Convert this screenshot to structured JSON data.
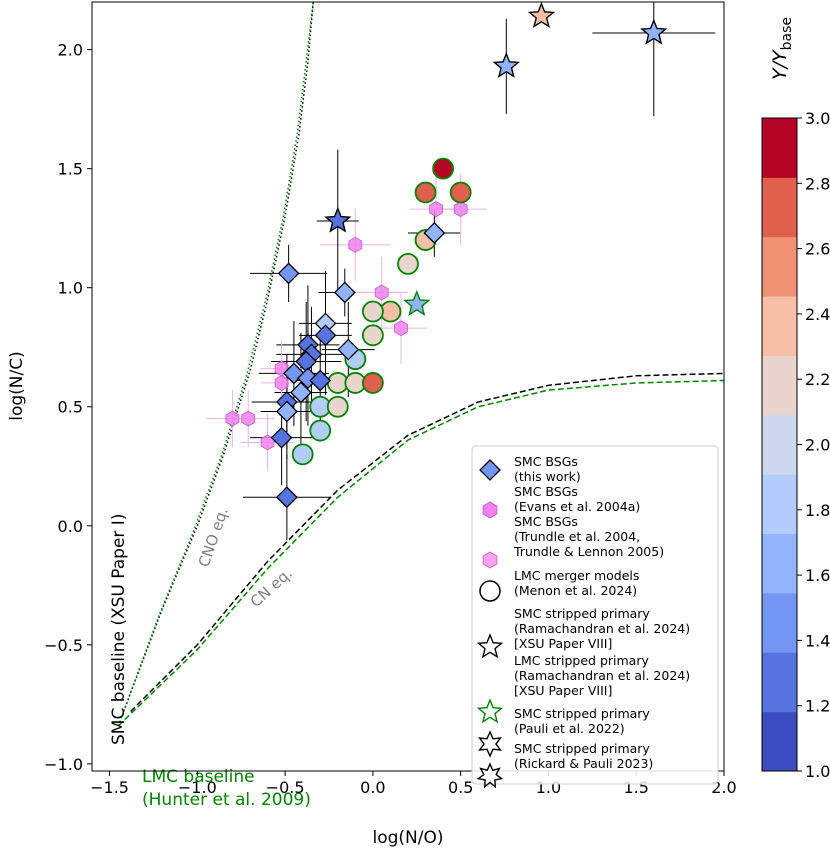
{
  "chart_data": {
    "type": "scatter",
    "xlabel": "log(N/O)",
    "ylabel": "log(N/C)",
    "xlim": [
      -1.6,
      2.0
    ],
    "ylim": [
      -1.03,
      2.2
    ],
    "xticks": [
      -1.5,
      -1.0,
      -0.5,
      0.0,
      0.5,
      1.0,
      1.5,
      2.0
    ],
    "yticks": [
      -1.0,
      -0.5,
      0.0,
      0.5,
      1.0,
      1.5,
      2.0
    ],
    "xtick_labels": [
      "−1.5",
      "−1.0",
      "−0.5",
      "0.0",
      "0.5",
      "1.0",
      "1.5",
      "2.0"
    ],
    "ytick_labels": [
      "−1.0",
      "−0.5",
      "0.0",
      "0.5",
      "1.0",
      "1.5",
      "2.0"
    ],
    "colorbar": {
      "label": "Y/Y_base",
      "label_main": "Y/Y",
      "label_sub": "base",
      "range": [
        1.0,
        3.0
      ],
      "ticks": [
        1.0,
        1.2,
        1.4,
        1.6,
        1.8,
        2.0,
        2.2,
        2.4,
        2.6,
        2.8,
        3.0
      ],
      "tick_labels": [
        "1.0",
        "1.2",
        "1.4",
        "1.6",
        "1.8",
        "2.0",
        "2.2",
        "2.4",
        "2.6",
        "2.8",
        "3.0"
      ],
      "colors": [
        "#3b4cc0",
        "#5673e0",
        "#7396f5",
        "#92b4fe",
        "#b2ccfb",
        "#cbd8ee",
        "#e8d6cc",
        "#f6bfa6",
        "#f29274",
        "#de604d",
        "#b40426"
      ]
    },
    "annotations": {
      "smc_baseline": "SMC baseline (XSU Paper I)",
      "lmc_baseline_1": "LMC baseline",
      "lmc_baseline_2": "(Hunter et al. 2009)",
      "cno_eq": "CNO eq.",
      "cn_eq": "CN eq."
    },
    "curves": {
      "cno_eq_smc": [
        [
          -1.42,
          -0.78
        ],
        [
          -1.2,
          -0.35
        ],
        [
          -1.0,
          0.0
        ],
        [
          -0.85,
          0.3
        ],
        [
          -0.7,
          0.65
        ],
        [
          -0.6,
          0.95
        ],
        [
          -0.5,
          1.3
        ],
        [
          -0.42,
          1.65
        ],
        [
          -0.37,
          1.95
        ],
        [
          -0.34,
          2.2
        ]
      ],
      "cno_eq_lmc": [
        [
          -1.45,
          -0.84
        ],
        [
          -1.22,
          -0.38
        ],
        [
          -1.02,
          -0.02
        ],
        [
          -0.86,
          0.3
        ],
        [
          -0.72,
          0.63
        ],
        [
          -0.61,
          0.95
        ],
        [
          -0.51,
          1.3
        ],
        [
          -0.43,
          1.65
        ],
        [
          -0.38,
          1.95
        ],
        [
          -0.34,
          2.2
        ]
      ],
      "cn_eq_smc": [
        [
          -1.38,
          -0.78
        ],
        [
          -1.0,
          -0.5
        ],
        [
          -0.6,
          -0.15
        ],
        [
          -0.2,
          0.15
        ],
        [
          0.2,
          0.38
        ],
        [
          0.6,
          0.52
        ],
        [
          1.0,
          0.59
        ],
        [
          1.5,
          0.63
        ],
        [
          2.0,
          0.64
        ]
      ],
      "cn_eq_lmc": [
        [
          -1.45,
          -0.84
        ],
        [
          -1.0,
          -0.52
        ],
        [
          -0.6,
          -0.18
        ],
        [
          -0.2,
          0.12
        ],
        [
          0.2,
          0.36
        ],
        [
          0.6,
          0.5
        ],
        [
          1.0,
          0.57
        ],
        [
          1.5,
          0.6
        ],
        [
          2.0,
          0.61
        ]
      ]
    },
    "series": [
      {
        "name": "SMC BSGs (this work)",
        "marker": "diamond",
        "points": [
          {
            "x": -0.48,
            "y": 1.06,
            "c": 1.4,
            "xerr": 0.22,
            "yerr": 0.12
          },
          {
            "x": -0.16,
            "y": 0.98,
            "c": 1.5,
            "xerr": 0.15,
            "yerr": 0.1
          },
          {
            "x": -0.27,
            "y": 0.85,
            "c": 1.8,
            "xerr": 0.15,
            "yerr": 0.22
          },
          {
            "x": -0.27,
            "y": 0.8,
            "c": 1.1,
            "xerr": 0.15,
            "yerr": 0.25
          },
          {
            "x": -0.37,
            "y": 0.76,
            "c": 1.1,
            "xerr": 0.18,
            "yerr": 0.25
          },
          {
            "x": -0.35,
            "y": 0.72,
            "c": 1.2,
            "xerr": 0.2,
            "yerr": 0.2
          },
          {
            "x": -0.14,
            "y": 0.74,
            "c": 1.5,
            "xerr": 0.15,
            "yerr": 0.2
          },
          {
            "x": -0.38,
            "y": 0.69,
            "c": 1.1,
            "xerr": 0.2,
            "yerr": 0.25
          },
          {
            "x": -0.45,
            "y": 0.64,
            "c": 1.4,
            "xerr": 0.2,
            "yerr": 0.22
          },
          {
            "x": -0.37,
            "y": 0.62,
            "c": 1.3,
            "xerr": 0.15,
            "yerr": 0.2
          },
          {
            "x": -0.3,
            "y": 0.61,
            "c": 1.1,
            "xerr": 0.15,
            "yerr": 0.2
          },
          {
            "x": -0.41,
            "y": 0.56,
            "c": 1.5,
            "xerr": 0.15,
            "yerr": 0.25
          },
          {
            "x": -0.49,
            "y": 0.52,
            "c": 1.2,
            "xerr": 0.2,
            "yerr": 0.2
          },
          {
            "x": -0.49,
            "y": 0.48,
            "c": 1.7,
            "xerr": 0.15,
            "yerr": 0.2
          },
          {
            "x": -0.52,
            "y": 0.37,
            "c": 1.1,
            "xerr": 0.18,
            "yerr": 0.2
          },
          {
            "x": -0.49,
            "y": 0.12,
            "c": 1.1,
            "xerr": 0.25,
            "yerr": 0.18
          },
          {
            "x": 0.35,
            "y": 1.23,
            "c": 1.5,
            "xerr": 0.15,
            "yerr": 0.1
          }
        ]
      },
      {
        "name": "SMC BSGs (Evans et al. 2004a)",
        "marker": "hexagon",
        "points": [
          {
            "x": -0.8,
            "y": 0.45,
            "xerr": 0.15,
            "yerr": 0.12
          },
          {
            "x": -0.71,
            "y": 0.45,
            "xerr": 0.15,
            "yerr": 0.12
          },
          {
            "x": -0.6,
            "y": 0.35,
            "xerr": 0.15,
            "yerr": 0.12
          },
          {
            "x": -0.52,
            "y": 0.6,
            "xerr": 0.12,
            "yerr": 0.12
          },
          {
            "x": -0.52,
            "y": 0.66,
            "xerr": 0.12,
            "yerr": 0.12
          },
          {
            "x": -0.1,
            "y": 1.18,
            "xerr": 0.2,
            "yerr": 0.15
          },
          {
            "x": 0.05,
            "y": 0.98,
            "xerr": 0.15,
            "yerr": 0.15
          },
          {
            "x": 0.16,
            "y": 0.83,
            "xerr": 0.15,
            "yerr": 0.15
          },
          {
            "x": 0.36,
            "y": 1.33,
            "xerr": 0.15,
            "yerr": 0.15
          },
          {
            "x": 0.5,
            "y": 1.33,
            "xerr": 0.15,
            "yerr": 0.15
          }
        ]
      },
      {
        "name": "SMC BSGs (Trundle et al. 2004, Trundle & Lennon 2005)",
        "marker": "hexagon",
        "points": []
      },
      {
        "name": "LMC merger models (Menon et al. 2024)",
        "marker": "circle",
        "points": [
          {
            "x": 0.4,
            "y": 1.5,
            "c": 3.0
          },
          {
            "x": 0.3,
            "y": 1.4,
            "c": 2.7
          },
          {
            "x": 0.5,
            "y": 1.4,
            "c": 2.9
          },
          {
            "x": 0.3,
            "y": 1.2,
            "c": 2.4
          },
          {
            "x": 0.2,
            "y": 1.1,
            "c": 2.1
          },
          {
            "x": 0.1,
            "y": 0.9,
            "c": 2.4
          },
          {
            "x": 0.0,
            "y": 0.9,
            "c": 2.1
          },
          {
            "x": 0.0,
            "y": 0.8,
            "c": 2.2
          },
          {
            "x": -0.1,
            "y": 0.7,
            "c": 1.9
          },
          {
            "x": -0.2,
            "y": 0.6,
            "c": 2.1
          },
          {
            "x": -0.1,
            "y": 0.6,
            "c": 2.1
          },
          {
            "x": 0.0,
            "y": 0.6,
            "c": 2.7
          },
          {
            "x": -0.3,
            "y": 0.5,
            "c": 1.9
          },
          {
            "x": -0.2,
            "y": 0.5,
            "c": 2.1
          },
          {
            "x": -0.3,
            "y": 0.4,
            "c": 1.9
          },
          {
            "x": -0.4,
            "y": 0.3,
            "c": 1.9
          }
        ]
      },
      {
        "name": "SMC stripped primary (Ramachandran et al. 2024) [XSU Paper VIII]",
        "marker": "star",
        "points": [
          {
            "x": 0.76,
            "y": 1.93,
            "c": 1.5,
            "xerr": 0.03,
            "yerr": 0.2
          },
          {
            "x": 0.96,
            "y": 2.14,
            "c": 2.4
          },
          {
            "x": 1.6,
            "y": 2.07,
            "c": 1.5,
            "xerr": 0.35,
            "yerr": 0.35
          }
        ]
      },
      {
        "name": "LMC stripped primary (Ramachandran et al. 2024) [XSU Paper VIII]",
        "marker": "star",
        "points": [
          {
            "x": 0.25,
            "y": 0.93,
            "c": 1.6
          }
        ]
      },
      {
        "name": "SMC stripped primary (Pauli et al. 2022)",
        "marker": "star",
        "points": [
          {
            "x": -0.2,
            "y": 1.28,
            "c": 1.1,
            "xerr": 0.12,
            "yerr": 0.3
          }
        ]
      },
      {
        "name": "SMC stripped primary (Rickard & Pauli 2023)",
        "marker": "star",
        "points": []
      }
    ],
    "legend": {
      "placement": "lower-right",
      "items": [
        {
          "marker": "diamond",
          "line1": "SMC BSGs",
          "line2": "(this work)"
        },
        {
          "marker": "hexagon-evans",
          "line1": "SMC BSGs",
          "line2": "(Evans et al. 2004a)"
        },
        {
          "marker": "hexagon-trundle",
          "line1": "SMC BSGs",
          "line2": "(Trundle et al. 2004,",
          "line3": "Trundle & Lennon 2005)"
        },
        {
          "marker": "circle",
          "line1": "LMC merger models",
          "line2": "(Menon et al. 2024)"
        },
        {
          "marker": "star5",
          "line1": "SMC stripped primary",
          "line2": "(Ramachandran et al. 2024)",
          "line3": "[XSU Paper VIII]"
        },
        {
          "marker": "star5-green",
          "line1": "LMC stripped primary",
          "line2": "(Ramachandran et al. 2024)",
          "line3": "[XSU Paper VIII]"
        },
        {
          "marker": "star6",
          "line1": "SMC stripped primary",
          "line2": "(Pauli et al. 2022)"
        },
        {
          "marker": "star7",
          "line1": "SMC stripped primary",
          "line2": "(Rickard & Pauli 2023)"
        }
      ]
    }
  }
}
